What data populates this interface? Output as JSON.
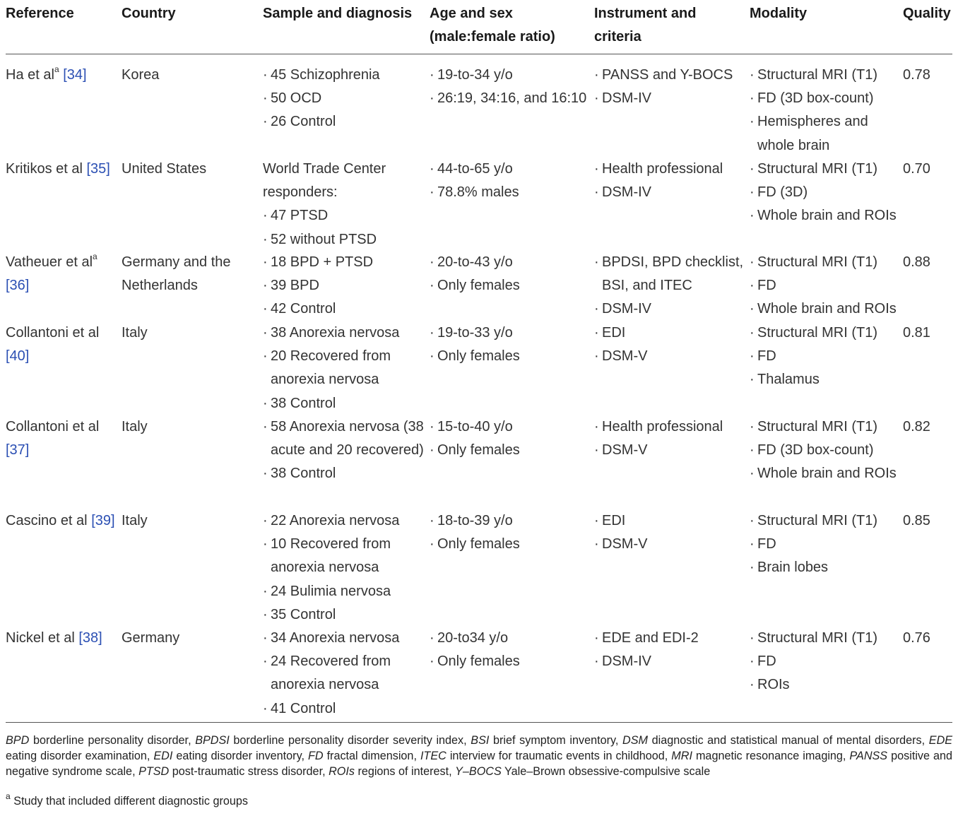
{
  "headers": {
    "reference": "Reference",
    "country": "Country",
    "sample": "Sample and diagnosis",
    "age_line1": "Age and sex",
    "age_line2": "(male:female ratio)",
    "instrument_line1": "Instrument and",
    "instrument_line2": "criteria",
    "modality": "Modality",
    "quality": "Quality"
  },
  "rows": [
    {
      "ref_text": "Ha et al",
      "ref_sup": "a",
      "ref_cite": "[34]",
      "ref_line2": "",
      "country": [
        "Korea"
      ],
      "sample": [
        "45 Schizophrenia",
        "50 OCD",
        "26 Control"
      ],
      "sample_intro": [],
      "age": [
        "19-to-34 y/o",
        "26:19, 34:16, and 16:10"
      ],
      "instrument": [
        "PANSS and Y-BOCS",
        "DSM-IV"
      ],
      "modality": [
        "Structural MRI (T1)",
        "FD (3D box-count)",
        "Hemispheres and whole brain"
      ],
      "quality": "0.78"
    },
    {
      "ref_text": "Kritikos et al",
      "ref_sup": "",
      "ref_cite": "[35]",
      "country": [
        "United States"
      ],
      "sample_intro": [
        "World Trade Center",
        "responders:"
      ],
      "sample": [
        "47 PTSD",
        "52 without PTSD"
      ],
      "age": [
        "44-to-65 y/o",
        "78.8% males"
      ],
      "instrument": [
        "Health professional",
        "DSM-IV"
      ],
      "modality": [
        "Structural MRI (T1)",
        "FD (3D)",
        "Whole brain and ROIs"
      ],
      "quality": "0.70"
    },
    {
      "ref_text": "Vatheuer et al",
      "ref_sup": "a",
      "ref_cite": "[36]",
      "country": [
        "Germany and the",
        "Netherlands"
      ],
      "sample_intro": [],
      "sample": [
        "18 BPD + PTSD",
        "39 BPD",
        "42 Control"
      ],
      "age": [
        "20-to-43 y/o",
        "Only females"
      ],
      "instrument": [
        "BPDSI, BPD checklist, BSI, and ITEC",
        "DSM-IV"
      ],
      "modality": [
        "Structural MRI (T1)",
        "FD",
        "Whole brain and ROIs"
      ],
      "quality": "0.88"
    },
    {
      "ref_text": "Collantoni et al",
      "ref_sup": "",
      "ref_cite": "[40]",
      "country": [
        "Italy"
      ],
      "sample_intro": [],
      "sample": [
        "38 Anorexia nervosa",
        "20 Recovered from anorexia nervosa",
        "38 Control"
      ],
      "age": [
        "19-to-33 y/o",
        "Only females"
      ],
      "instrument": [
        "EDI",
        "DSM-V"
      ],
      "modality": [
        "Structural MRI (T1)",
        "FD",
        "Thalamus"
      ],
      "quality": "0.81"
    },
    {
      "ref_text": "Collantoni et al",
      "ref_sup": "",
      "ref_cite": "[37]",
      "country": [
        "Italy"
      ],
      "sample_intro": [],
      "sample": [
        "58 Anorexia nervosa (38 acute and 20 recovered)",
        "38 Control"
      ],
      "age": [
        "15-to-40 y/o",
        "Only females"
      ],
      "instrument": [
        "Health professional",
        "DSM-V"
      ],
      "modality": [
        "Structural MRI (T1)",
        "FD (3D box-count)",
        "Whole brain and ROIs"
      ],
      "quality": "0.82"
    },
    {
      "ref_text": "Cascino et al",
      "ref_sup": "",
      "ref_cite": "[39]",
      "country": [
        "Italy"
      ],
      "sample_intro": [],
      "sample": [
        "22 Anorexia nervosa",
        "10 Recovered from anorexia nervosa",
        "24 Bulimia nervosa",
        "35 Control"
      ],
      "age": [
        "18-to-39 y/o",
        "Only females"
      ],
      "instrument": [
        "EDI",
        "DSM-V"
      ],
      "modality": [
        "Structural MRI (T1)",
        "FD",
        "Brain lobes"
      ],
      "quality": "0.85"
    },
    {
      "ref_text": "Nickel et al",
      "ref_sup": "",
      "ref_cite": "[38]",
      "country": [
        "Germany"
      ],
      "sample_intro": [],
      "sample": [
        "34 Anorexia nervosa",
        "24 Recovered from anorexia nervosa",
        "41 Control"
      ],
      "age": [
        "20-to34 y/o",
        "Only females"
      ],
      "instrument": [
        "EDE and EDI-2",
        "DSM-IV"
      ],
      "modality": [
        "Structural MRI (T1)",
        "FD",
        "ROIs"
      ],
      "quality": "0.76"
    }
  ],
  "footnote": {
    "abbreviations": [
      {
        "abbr": "BPD",
        "def": "borderline personality disorder"
      },
      {
        "abbr": "BPDSI",
        "def": "borderline personality disorder severity index"
      },
      {
        "abbr": "BSI",
        "def": "brief symptom inventory"
      },
      {
        "abbr": "DSM",
        "def": "diagnostic and statistical manual of mental disorders"
      },
      {
        "abbr": "EDE",
        "def": "eating disorder examination"
      },
      {
        "abbr": "EDI",
        "def": "eating disorder inventory"
      },
      {
        "abbr": "FD",
        "def": "fractal dimension"
      },
      {
        "abbr": "ITEC",
        "def": "interview for traumatic events in childhood"
      },
      {
        "abbr": "MRI",
        "def": "magnetic resonance imaging"
      },
      {
        "abbr": "PANSS",
        "def": "positive and negative syndrome scale"
      },
      {
        "abbr": "PTSD",
        "def": "post-traumatic stress disorder"
      },
      {
        "abbr": "ROIs",
        "def": "regions of interest"
      },
      {
        "abbr": "Y–BOCS",
        "def": "Yale–Brown obsessive-compulsive scale"
      }
    ],
    "note_marker": "a",
    "note_text": "Study that included different diagnostic groups"
  }
}
